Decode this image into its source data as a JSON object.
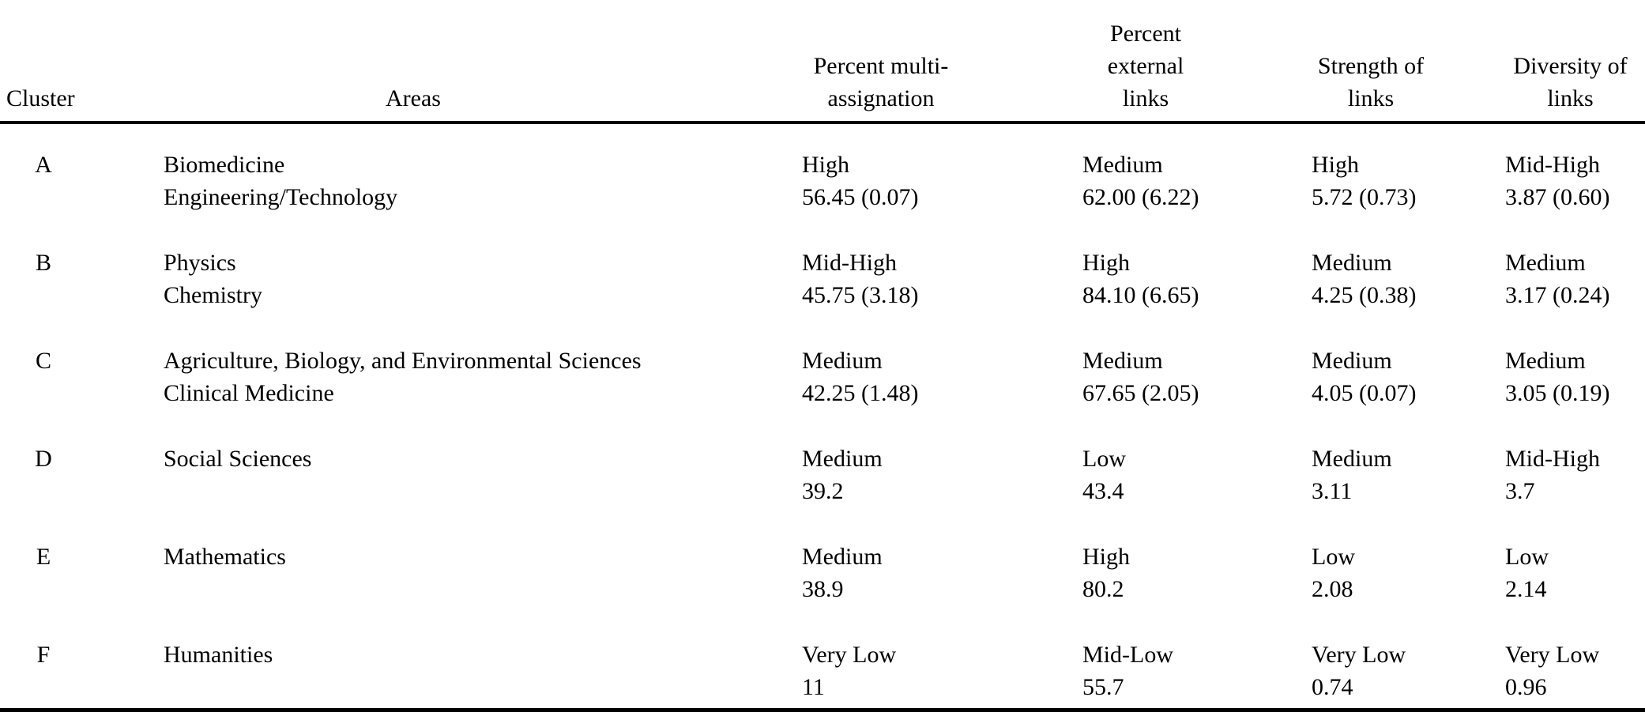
{
  "colors": {
    "text": "#000000",
    "background": "#ffffff",
    "rule": "#000000"
  },
  "table": {
    "columns": [
      {
        "key": "cluster",
        "label": "Cluster"
      },
      {
        "key": "areas",
        "label": "Areas"
      },
      {
        "key": "multi",
        "label_lines": [
          "Percent multi-",
          "assignation"
        ]
      },
      {
        "key": "external",
        "label_lines": [
          "Percent external",
          "links"
        ]
      },
      {
        "key": "strength",
        "label_lines": [
          "Strength of",
          "links"
        ]
      },
      {
        "key": "diversity",
        "label_lines": [
          "Diversity of",
          "links"
        ]
      }
    ],
    "rows": [
      {
        "cluster": "A",
        "areas": [
          "Biomedicine",
          "Engineering/Technology"
        ],
        "multi": {
          "level": "High",
          "value": "56.45 (0.07)"
        },
        "external": {
          "level": "Medium",
          "value": "62.00 (6.22)"
        },
        "strength": {
          "level": "High",
          "value": "5.72 (0.73)"
        },
        "diversity": {
          "level": "Mid-High",
          "value": "3.87 (0.60)"
        }
      },
      {
        "cluster": "B",
        "areas": [
          "Physics",
          "Chemistry"
        ],
        "multi": {
          "level": "Mid-High",
          "value": "45.75 (3.18)"
        },
        "external": {
          "level": "High",
          "value": "84.10 (6.65)"
        },
        "strength": {
          "level": "Medium",
          "value": "4.25 (0.38)"
        },
        "diversity": {
          "level": "Medium",
          "value": "3.17 (0.24)"
        }
      },
      {
        "cluster": "C",
        "areas": [
          "Agriculture, Biology, and Environmental Sciences",
          "Clinical Medicine"
        ],
        "multi": {
          "level": "Medium",
          "value": "42.25 (1.48)"
        },
        "external": {
          "level": "Medium",
          "value": "67.65 (2.05)"
        },
        "strength": {
          "level": "Medium",
          "value": "4.05 (0.07)"
        },
        "diversity": {
          "level": "Medium",
          "value": "3.05 (0.19)"
        }
      },
      {
        "cluster": "D",
        "areas": [
          "Social Sciences"
        ],
        "multi": {
          "level": "Medium",
          "value": "39.2"
        },
        "external": {
          "level": "Low",
          "value": "43.4"
        },
        "strength": {
          "level": "Medium",
          "value": "3.11"
        },
        "diversity": {
          "level": "Mid-High",
          "value": "3.7"
        }
      },
      {
        "cluster": "E",
        "areas": [
          "Mathematics"
        ],
        "multi": {
          "level": "Medium",
          "value": "38.9"
        },
        "external": {
          "level": "High",
          "value": "80.2"
        },
        "strength": {
          "level": "Low",
          "value": "2.08"
        },
        "diversity": {
          "level": "Low",
          "value": "2.14"
        }
      },
      {
        "cluster": "F",
        "areas": [
          "Humanities"
        ],
        "multi": {
          "level": "Very Low",
          "value": "11"
        },
        "external": {
          "level": "Mid-Low",
          "value": "55.7"
        },
        "strength": {
          "level": "Very Low",
          "value": "0.74"
        },
        "diversity": {
          "level": "Very Low",
          "value": "0.96"
        }
      }
    ]
  }
}
